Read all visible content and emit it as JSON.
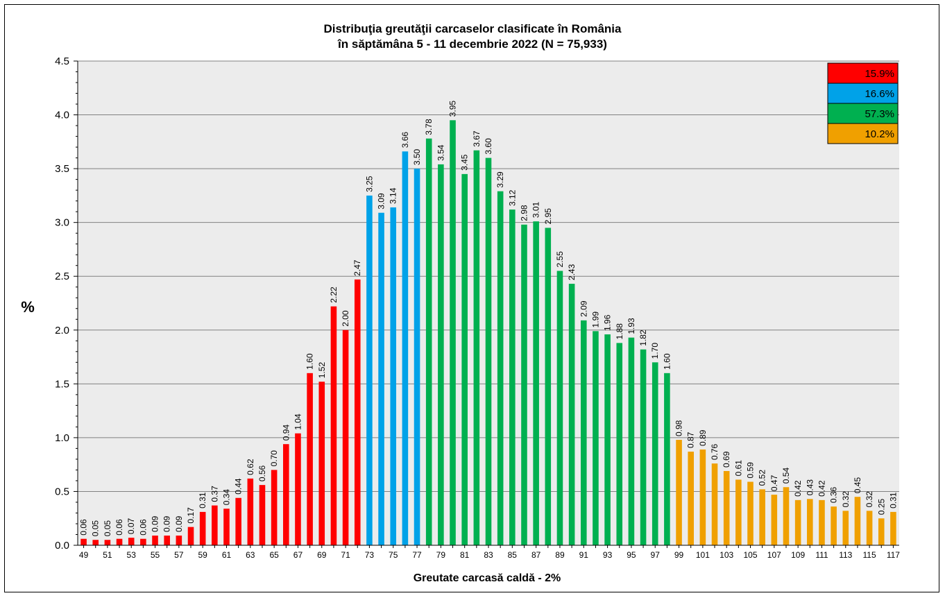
{
  "chart_data": {
    "type": "bar",
    "title": "Distribuţia greutăţii carcaselor clasificate în România",
    "subtitle": "în săptămâna 5 - 11 decembrie 2022 (N = 75,933)",
    "xlabel": "Greutate carcasă caldă - 2%",
    "ylabel": "%",
    "ylim": [
      0,
      4.5
    ],
    "yticks": [
      "0.0",
      "0.5",
      "1.0",
      "1.5",
      "2.0",
      "2.5",
      "3.0",
      "3.5",
      "4.0",
      "4.5"
    ],
    "grid": true,
    "categories": [
      49,
      50,
      51,
      52,
      53,
      54,
      55,
      56,
      57,
      58,
      59,
      60,
      61,
      62,
      63,
      64,
      65,
      66,
      67,
      68,
      69,
      70,
      71,
      72,
      73,
      74,
      75,
      76,
      77,
      78,
      79,
      80,
      81,
      82,
      83,
      84,
      85,
      86,
      87,
      88,
      89,
      90,
      91,
      92,
      93,
      94,
      95,
      96,
      97,
      98,
      99,
      100,
      101,
      102,
      103,
      104,
      105,
      106,
      107,
      108,
      109,
      110,
      111,
      112,
      113,
      114,
      115,
      116,
      117
    ],
    "values": [
      0.06,
      0.05,
      0.05,
      0.06,
      0.07,
      0.06,
      0.09,
      0.09,
      0.09,
      0.17,
      0.31,
      0.37,
      0.34,
      0.44,
      0.62,
      0.56,
      0.7,
      0.94,
      1.04,
      1.6,
      1.52,
      2.22,
      2.0,
      2.47,
      3.25,
      3.09,
      3.14,
      3.66,
      3.5,
      3.78,
      3.54,
      3.95,
      3.45,
      3.67,
      3.6,
      3.29,
      3.12,
      2.98,
      3.01,
      2.95,
      2.55,
      2.43,
      2.09,
      1.99,
      1.96,
      1.88,
      1.93,
      1.82,
      1.7,
      1.6,
      0.98,
      0.87,
      0.89,
      0.76,
      0.69,
      0.61,
      0.59,
      0.52,
      0.47,
      0.54,
      0.42,
      0.43,
      0.42,
      0.36,
      0.32,
      0.45,
      0.32,
      0.25,
      0.31
    ],
    "labels": [
      "0.06",
      "0.05",
      "0.05",
      "0.06",
      "0.07",
      "0.06",
      "0.09",
      "0.09",
      "0.09",
      "0.17",
      "0.31",
      "0.37",
      "0.34",
      "0.44",
      "0.62",
      "0.56",
      "0.70",
      "0.94",
      "1.04",
      "1.60",
      "1.52",
      "2.22",
      "2.00",
      "2.47",
      "3.25",
      "3.09",
      "3.14",
      "3.66",
      "3.50",
      "3.78",
      "3.54",
      "3.95",
      "3.45",
      "3.67",
      "3.60",
      "3.29",
      "3.12",
      "2.98",
      "3.01",
      "2.95",
      "2.55",
      "2.43",
      "2.09",
      "1.99",
      "1.96",
      "1.88",
      "1.93",
      "1.82",
      "1.70",
      "1.60",
      "0.98",
      "0.87",
      "0.89",
      "0.76",
      "0.69",
      "0.61",
      "0.59",
      "0.52",
      "0.47",
      "0.54",
      "0.42",
      "0.43",
      "0.42",
      "0.36",
      "0.32",
      "0.45",
      "0.32",
      "0.25",
      "0.31"
    ],
    "groups": [
      {
        "from": 49,
        "to": 72,
        "color": "#ff0000",
        "legend": "15.9%"
      },
      {
        "from": 73,
        "to": 77,
        "color": "#00a2e8",
        "legend": "16.6%"
      },
      {
        "from": 78,
        "to": 98,
        "color": "#00b050",
        "legend": "57.3%"
      },
      {
        "from": 99,
        "to": 117,
        "color": "#f0a000",
        "legend": "10.2%"
      }
    ],
    "legend_position": "top-right"
  },
  "colors": {
    "plot_bg": "#ececec",
    "grid": "#808080",
    "red": "#ff0000",
    "blue": "#00a2e8",
    "green": "#00b050",
    "orange": "#f0a000"
  }
}
